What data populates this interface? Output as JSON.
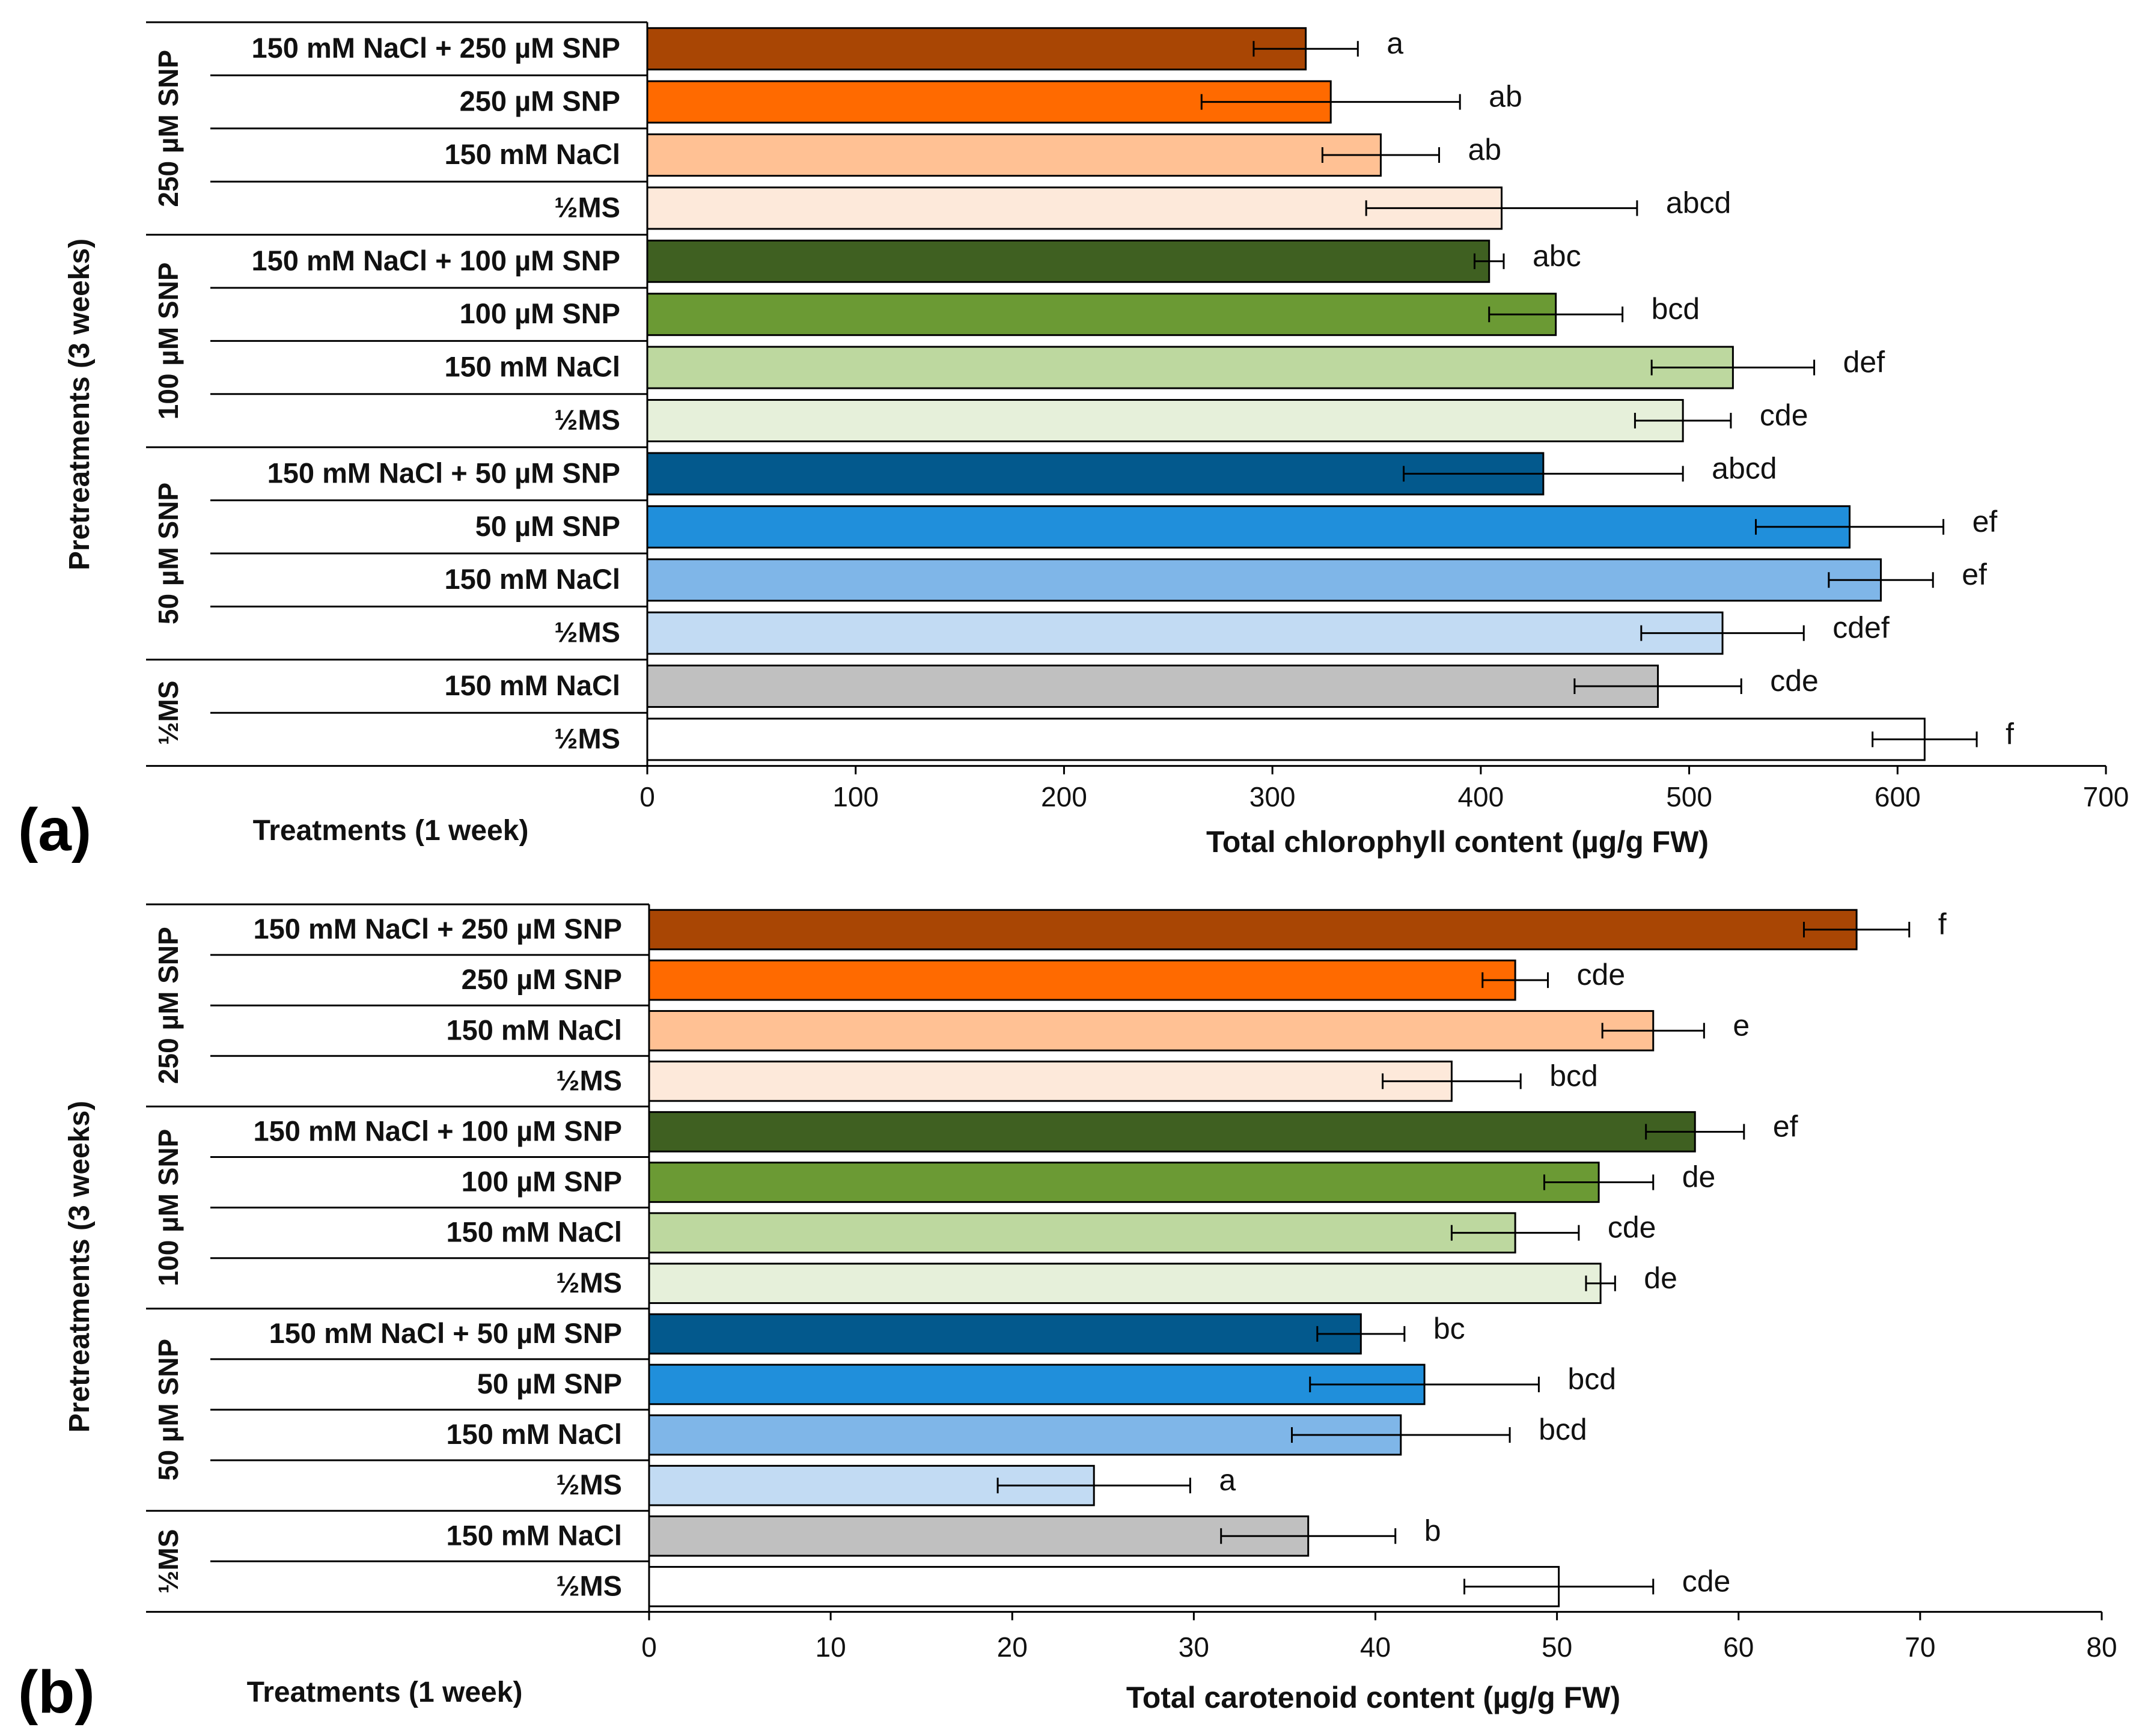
{
  "chart_data": [
    {
      "type": "bar",
      "orientation": "horizontal",
      "panel_label": "(a)",
      "xlabel": "Total chlorophyll  content (µg/g FW)",
      "ylabel_pretreatment": "Pretreatments (3 weeks)",
      "ylabel_treatment": "Treatments (1 week)",
      "xlim": [
        0,
        700
      ],
      "xticks": [
        "0",
        "100",
        "200",
        "300",
        "400",
        "500",
        "600",
        "700"
      ],
      "groups": [
        {
          "label": "250 µM SNP",
          "size": 4
        },
        {
          "label": "100 µM SNP",
          "size": 4
        },
        {
          "label": "50 µM SNP",
          "size": 4
        },
        {
          "label": "½MS",
          "size": 2
        }
      ],
      "categories": [
        "150 mM NaCl + 250 µM SNP",
        "250 µM SNP",
        "150 mM NaCl",
        "½MS",
        "150 mM NaCl + 100 µM SNP",
        "100 µM SNP",
        "150 mM NaCl",
        "½MS",
        "150 mM NaCl + 50 µM SNP",
        "50 µM SNP",
        "150 mM NaCl",
        "½MS",
        "150 mM NaCl",
        "½MS"
      ],
      "values": [
        316,
        328,
        352,
        410,
        404,
        436,
        521,
        497,
        430,
        577,
        592,
        516,
        485,
        613
      ],
      "errors": [
        25,
        62,
        28,
        65,
        7,
        32,
        39,
        23,
        67,
        45,
        25,
        39,
        40,
        25
      ],
      "significance": [
        "a",
        "ab",
        "ab",
        "abcd",
        "abc",
        "bcd",
        "def",
        "cde",
        "abcd",
        "ef",
        "ef",
        "cdef",
        "cde",
        "f"
      ],
      "colors": [
        "#A94604",
        "#FF6A00",
        "#FFC194",
        "#FDE9DA",
        "#3F6021",
        "#6B9A34",
        "#BDD89F",
        "#E6F0DA",
        "#03598D",
        "#208FDB",
        "#7FB6E8",
        "#C2DBF3",
        "#C0C0C0",
        "#FFFFFF"
      ]
    },
    {
      "type": "bar",
      "orientation": "horizontal",
      "panel_label": "(b)",
      "xlabel": "Total carotenoid content (µg/g FW)",
      "ylabel_pretreatment": "Pretreatments (3 weeks)",
      "ylabel_treatment": "Treatments (1 week)",
      "xlim": [
        0,
        80
      ],
      "xticks": [
        "0",
        "10",
        "20",
        "30",
        "40",
        "50",
        "60",
        "70",
        "80"
      ],
      "groups": [
        {
          "label": "250 µM SNP",
          "size": 4
        },
        {
          "label": "100 µM SNP",
          "size": 4
        },
        {
          "label": "50 µM SNP",
          "size": 4
        },
        {
          "label": "½MS",
          "size": 2
        }
      ],
      "categories": [
        "150 mM NaCl + 250 µM SNP",
        "250 µM SNP",
        "150 mM NaCl",
        "½MS",
        "150 mM NaCl + 100 µM SNP",
        "100 µM SNP",
        "150 mM NaCl",
        "½MS",
        "150 mM NaCl + 50 µM SNP",
        "50 µM SNP",
        "150 mM NaCl",
        "½MS",
        "150 mM NaCl",
        "½MS"
      ],
      "values": [
        66.5,
        47.7,
        55.3,
        44.2,
        57.6,
        52.3,
        47.7,
        52.4,
        39.2,
        42.7,
        41.4,
        24.5,
        36.3,
        50.1
      ],
      "errors": [
        2.9,
        1.8,
        2.8,
        3.8,
        2.7,
        3.0,
        3.5,
        0.8,
        2.4,
        6.3,
        6.0,
        5.3,
        4.8,
        5.2
      ],
      "significance": [
        "f",
        "cde",
        "e",
        "bcd",
        "ef",
        "de",
        "cde",
        "de",
        "bc",
        "bcd",
        "bcd",
        "a",
        "b",
        "cde"
      ],
      "colors": [
        "#A94604",
        "#FF6A00",
        "#FFC194",
        "#FDE9DA",
        "#3F6021",
        "#6B9A34",
        "#BDD89F",
        "#E6F0DA",
        "#03598D",
        "#208FDB",
        "#7FB6E8",
        "#C2DBF3",
        "#C0C0C0",
        "#FFFFFF"
      ]
    }
  ]
}
